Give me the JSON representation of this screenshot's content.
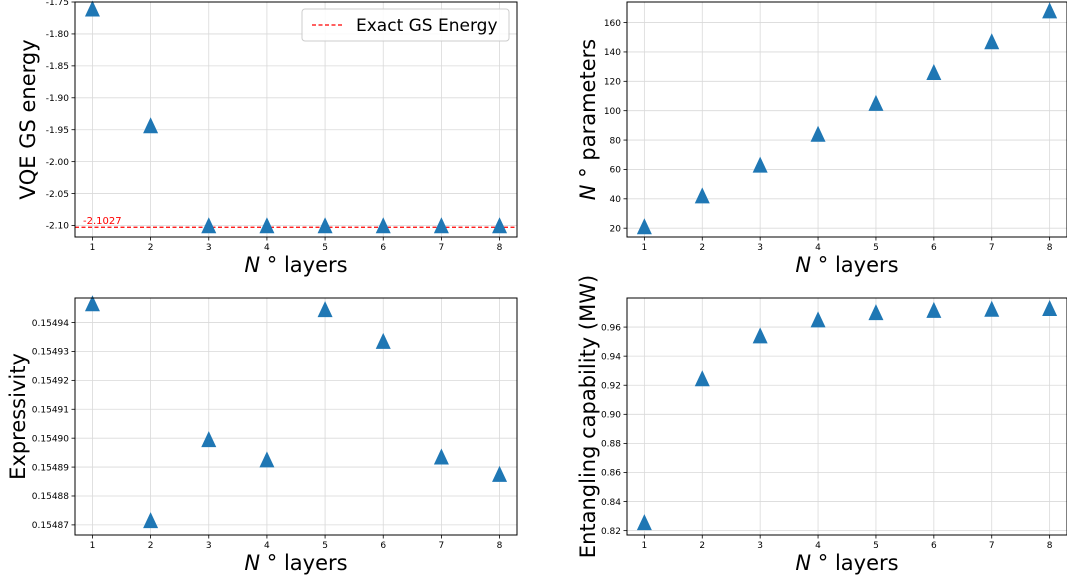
{
  "chart_data": [
    {
      "type": "scatter",
      "x": [
        1,
        2,
        3,
        4,
        5,
        6,
        7,
        8
      ],
      "y": [
        -1.7632,
        -1.946,
        -2.1027,
        -2.1027,
        -2.1027,
        -2.1027,
        -2.1027,
        -2.1027
      ],
      "xlabel": "N ° layers",
      "ylabel": "VQE GS energy",
      "xlim": [
        0.7,
        8.3
      ],
      "ylim": [
        -2.118,
        -1.75
      ],
      "xticks": [
        "1",
        "2",
        "3",
        "4",
        "5",
        "6",
        "7",
        "8"
      ],
      "yticks": [
        "-1.75",
        "-1.80",
        "-1.85",
        "-1.90",
        "-1.95",
        "-2.00",
        "-2.05",
        "-2.10"
      ],
      "reference_line": {
        "value": -2.1027,
        "label": "-2.1027",
        "style": "dashed",
        "color": "#ff0000"
      },
      "legend": {
        "entries": [
          "Exact GS Energy"
        ],
        "placement": "top-right"
      },
      "marker": "triangle",
      "color": "#1f77b4",
      "grid": true
    },
    {
      "type": "scatter",
      "x": [
        1,
        2,
        3,
        4,
        5,
        6,
        7,
        8
      ],
      "y": [
        20,
        41,
        62,
        83,
        104,
        125,
        146,
        167
      ],
      "xlabel": "N ° layers",
      "ylabel": "N ° parameters",
      "xlim": [
        0.7,
        8.3
      ],
      "ylim": [
        14,
        174
      ],
      "xticks": [
        "1",
        "2",
        "3",
        "4",
        "5",
        "6",
        "7",
        "8"
      ],
      "yticks": [
        "20",
        "40",
        "60",
        "80",
        "100",
        "120",
        "140",
        "160"
      ],
      "marker": "triangle",
      "color": "#1f77b4",
      "grid": true
    },
    {
      "type": "scatter",
      "x": [
        1,
        2,
        3,
        4,
        5,
        6,
        7,
        8
      ],
      "y": [
        0.154946,
        0.154871,
        0.154899,
        0.154892,
        0.154944,
        0.154933,
        0.154893,
        0.154887
      ],
      "xlabel": "N ° layers",
      "ylabel": "Expressivity",
      "xlim": [
        0.7,
        8.3
      ],
      "ylim": [
        0.1548665,
        0.1549485
      ],
      "xticks": [
        "1",
        "2",
        "3",
        "4",
        "5",
        "6",
        "7",
        "8"
      ],
      "yticks": [
        "0.15487",
        "0.15488",
        "0.15489",
        "0.15490",
        "0.15491",
        "0.15492",
        "0.15493",
        "0.15494"
      ],
      "marker": "triangle",
      "color": "#1f77b4",
      "grid": true
    },
    {
      "type": "scatter",
      "x": [
        1,
        2,
        3,
        4,
        5,
        6,
        7,
        8
      ],
      "y": [
        0.8245,
        0.9235,
        0.953,
        0.964,
        0.969,
        0.9705,
        0.9713,
        0.9718
      ],
      "xlabel": "N ° layers",
      "ylabel": "Entangling capability (MW)",
      "xlim": [
        0.7,
        8.3
      ],
      "ylim": [
        0.817,
        0.98
      ],
      "xticks": [
        "1",
        "2",
        "3",
        "4",
        "5",
        "6",
        "7",
        "8"
      ],
      "yticks": [
        "0.82",
        "0.84",
        "0.86",
        "0.88",
        "0.90",
        "0.92",
        "0.94",
        "0.96"
      ],
      "marker": "triangle",
      "color": "#1f77b4",
      "grid": true
    }
  ]
}
